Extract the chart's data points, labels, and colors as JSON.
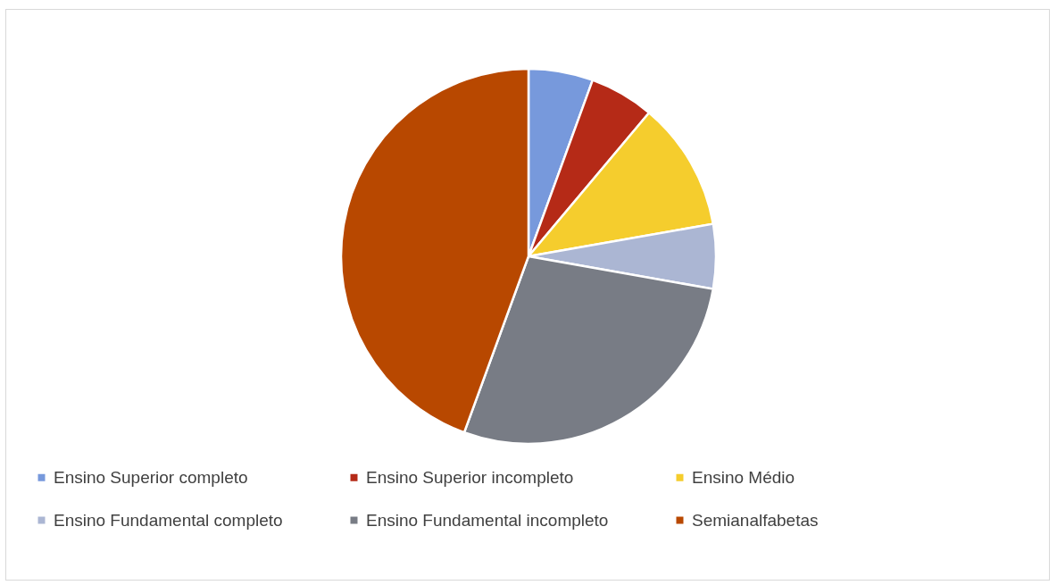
{
  "chart_data": {
    "type": "pie",
    "categories": [
      "Ensino Superior completo",
      "Ensino Superior incompleto",
      "Ensino Médio",
      "Ensino Fundamental completo",
      "Ensino Fundamental incompleto",
      "Semianalfabetas"
    ],
    "values": [
      5.56,
      5.56,
      11.11,
      5.56,
      27.78,
      44.43
    ],
    "colors": [
      "#7799dc",
      "#b52a17",
      "#f5cd2d",
      "#abb6d3",
      "#787c85",
      "#b84800"
    ],
    "legend": "bottom"
  }
}
